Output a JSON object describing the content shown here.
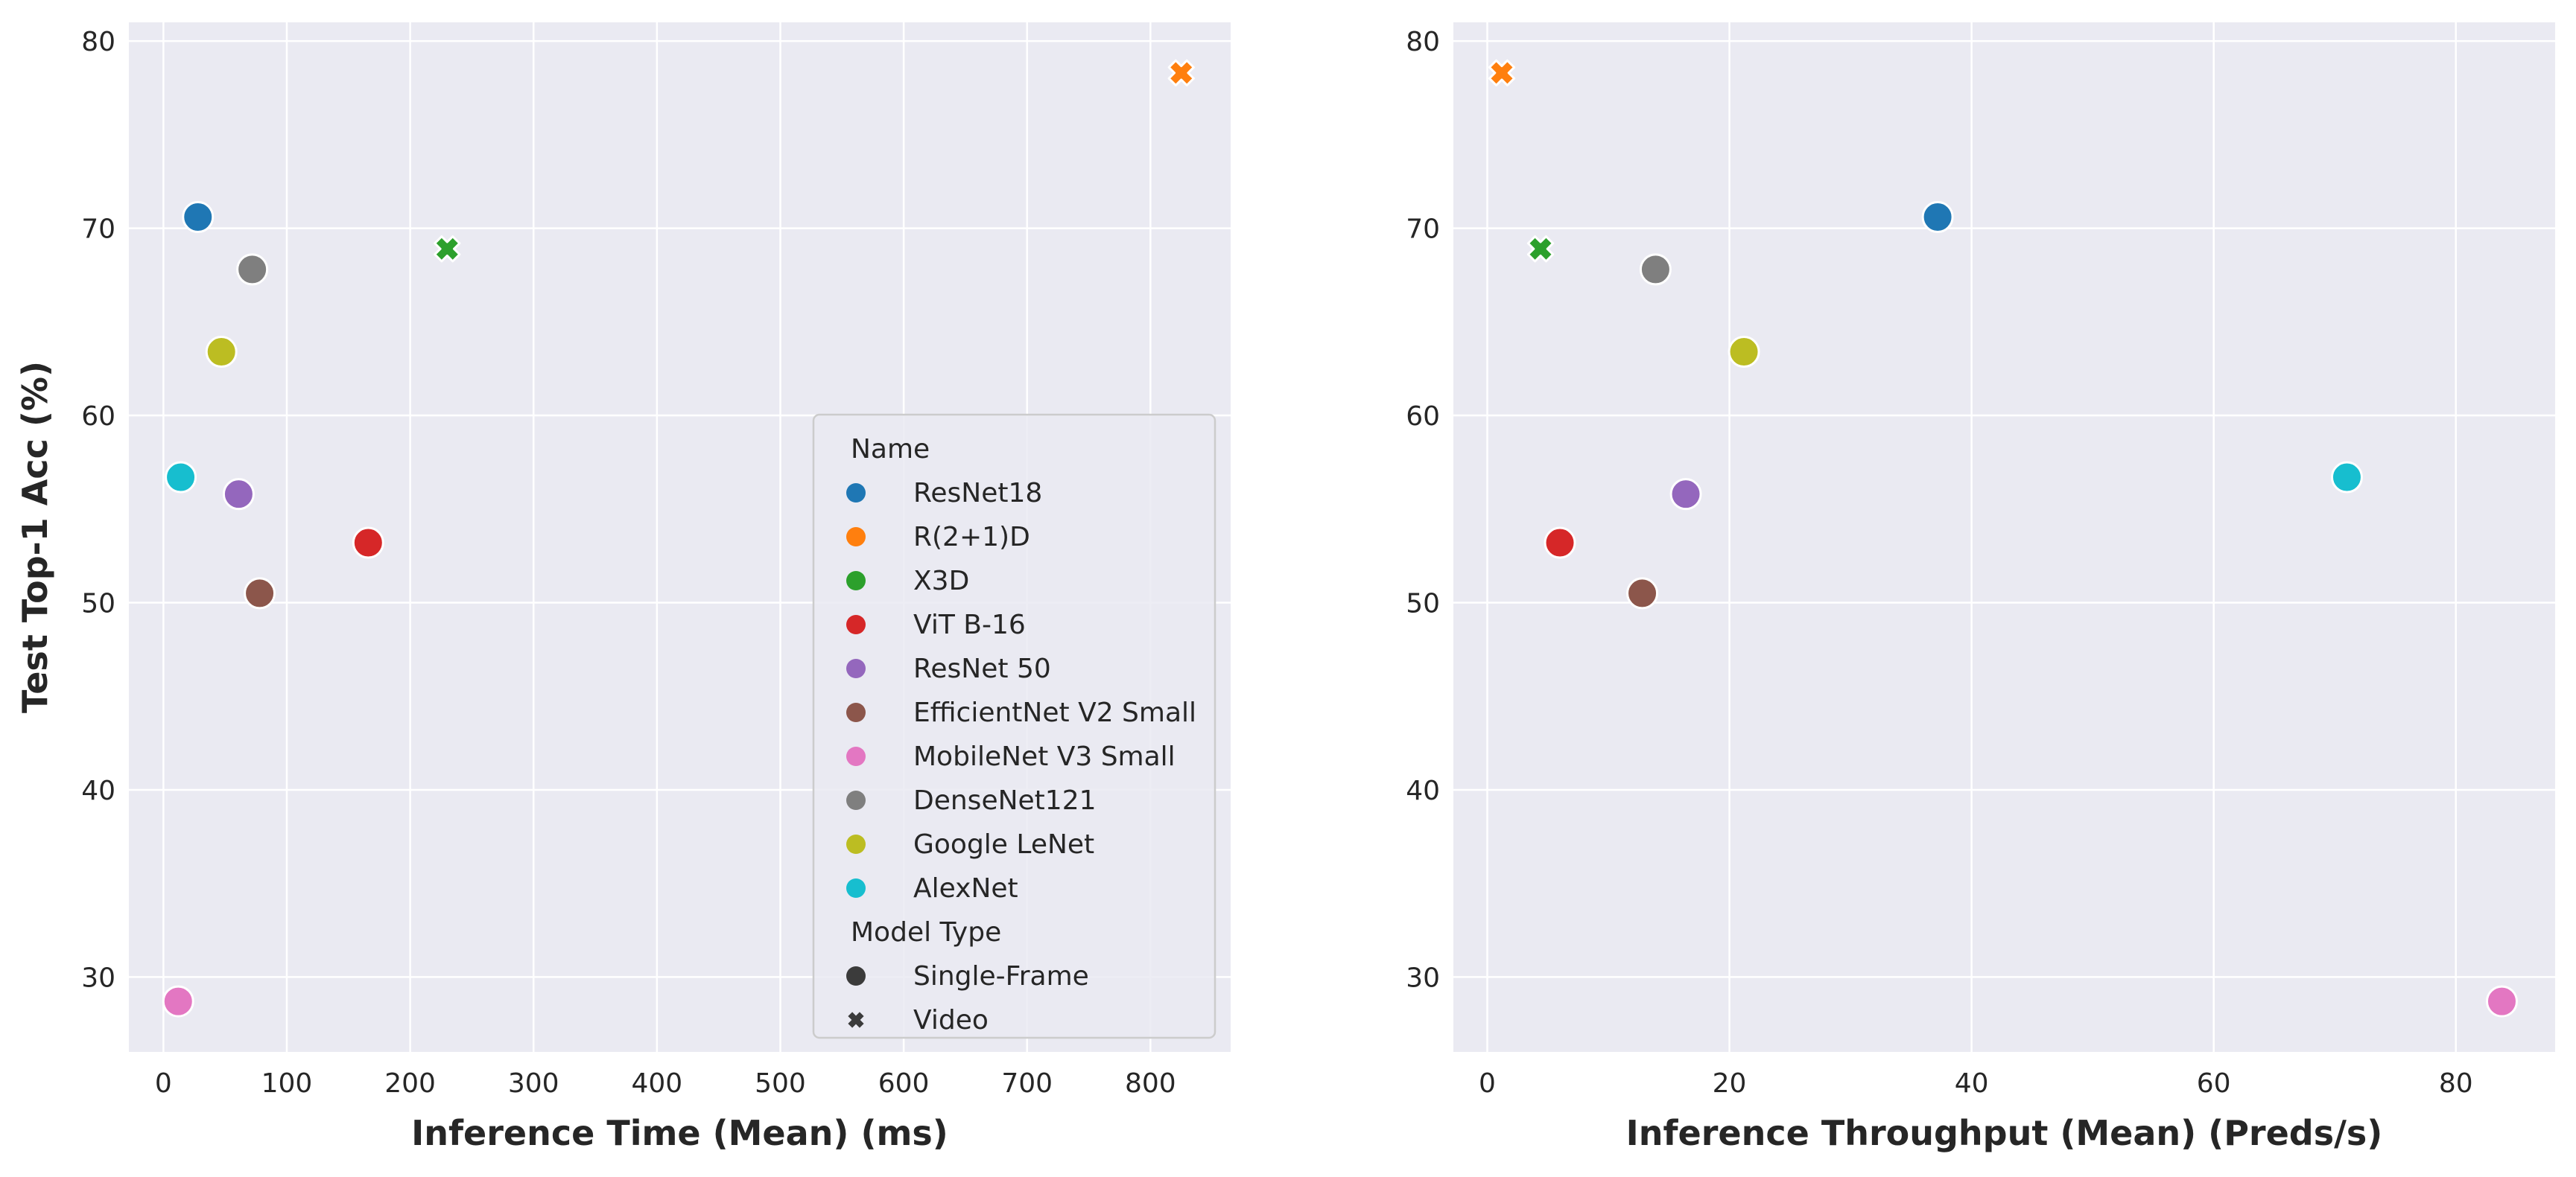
{
  "chart_data": [
    {
      "type": "scatter",
      "xlabel": "Inference Time (Mean) (ms)",
      "ylabel": "Test Top-1 Acc (%)",
      "xlim": [
        -28,
        865
      ],
      "ylim": [
        26,
        81
      ],
      "xticks": [
        0,
        100,
        200,
        300,
        400,
        500,
        600,
        700,
        800
      ],
      "yticks": [
        30,
        40,
        50,
        60,
        70,
        80
      ],
      "grid": true,
      "legend_position": "lower-right",
      "points": [
        {
          "name": "ResNet18",
          "model_type": "Single-Frame",
          "x": 28,
          "y": 70.6
        },
        {
          "name": "R(2+1)D",
          "model_type": "Video",
          "x": 825,
          "y": 78.3
        },
        {
          "name": "X3D",
          "model_type": "Video",
          "x": 230,
          "y": 68.9
        },
        {
          "name": "ViT B-16",
          "model_type": "Single-Frame",
          "x": 166,
          "y": 53.2
        },
        {
          "name": "ResNet 50",
          "model_type": "Single-Frame",
          "x": 61,
          "y": 55.8
        },
        {
          "name": "EfficientNet V2 Small",
          "model_type": "Single-Frame",
          "x": 78,
          "y": 50.5
        },
        {
          "name": "MobileNet V3 Small",
          "model_type": "Single-Frame",
          "x": 12,
          "y": 28.7
        },
        {
          "name": "DenseNet121",
          "model_type": "Single-Frame",
          "x": 72,
          "y": 67.8
        },
        {
          "name": "Google LeNet",
          "model_type": "Single-Frame",
          "x": 47,
          "y": 63.4
        },
        {
          "name": "AlexNet",
          "model_type": "Single-Frame",
          "x": 14,
          "y": 56.7
        }
      ]
    },
    {
      "type": "scatter",
      "xlabel": "Inference Throughput (Mean) (Preds/s)",
      "ylabel": "",
      "xlim": [
        -2.8,
        88.2
      ],
      "ylim": [
        26,
        81
      ],
      "xticks": [
        0,
        20,
        40,
        60,
        80
      ],
      "yticks": [
        30,
        40,
        50,
        60,
        70,
        80
      ],
      "grid": true,
      "points": [
        {
          "name": "ResNet18",
          "model_type": "Single-Frame",
          "x": 37.2,
          "y": 70.6
        },
        {
          "name": "R(2+1)D",
          "model_type": "Video",
          "x": 1.2,
          "y": 78.3
        },
        {
          "name": "X3D",
          "model_type": "Video",
          "x": 4.4,
          "y": 68.9
        },
        {
          "name": "ViT B-16",
          "model_type": "Single-Frame",
          "x": 6.0,
          "y": 53.2
        },
        {
          "name": "ResNet 50",
          "model_type": "Single-Frame",
          "x": 16.4,
          "y": 55.8
        },
        {
          "name": "EfficientNet V2 Small",
          "model_type": "Single-Frame",
          "x": 12.8,
          "y": 50.5
        },
        {
          "name": "MobileNet V3 Small",
          "model_type": "Single-Frame",
          "x": 83.8,
          "y": 28.7
        },
        {
          "name": "DenseNet121",
          "model_type": "Single-Frame",
          "x": 13.9,
          "y": 67.8
        },
        {
          "name": "Google LeNet",
          "model_type": "Single-Frame",
          "x": 21.2,
          "y": 63.4
        },
        {
          "name": "AlexNet",
          "model_type": "Single-Frame",
          "x": 71.0,
          "y": 56.7
        }
      ]
    }
  ],
  "legend": {
    "name_title": "Name",
    "names": [
      {
        "label": "ResNet18",
        "color": "#1f77b4"
      },
      {
        "label": "R(2+1)D",
        "color": "#ff7f0e"
      },
      {
        "label": "X3D",
        "color": "#2ca02c"
      },
      {
        "label": "ViT B-16",
        "color": "#d62728"
      },
      {
        "label": "ResNet 50",
        "color": "#9467bd"
      },
      {
        "label": "EfficientNet V2 Small",
        "color": "#8c564b"
      },
      {
        "label": "MobileNet V3 Small",
        "color": "#e377c2"
      },
      {
        "label": "DenseNet121",
        "color": "#7f7f7f"
      },
      {
        "label": "Google LeNet",
        "color": "#bcbd22"
      },
      {
        "label": "AlexNet",
        "color": "#17becf"
      }
    ],
    "type_title": "Model Type",
    "types": [
      {
        "label": "Single-Frame",
        "marker": "circle"
      },
      {
        "label": "Video",
        "marker": "x"
      }
    ]
  },
  "colors": {
    "plot_background": "#eaeaf2",
    "grid": "#ffffff",
    "text": "#262626",
    "legend_marker": "#3b3b3b"
  }
}
